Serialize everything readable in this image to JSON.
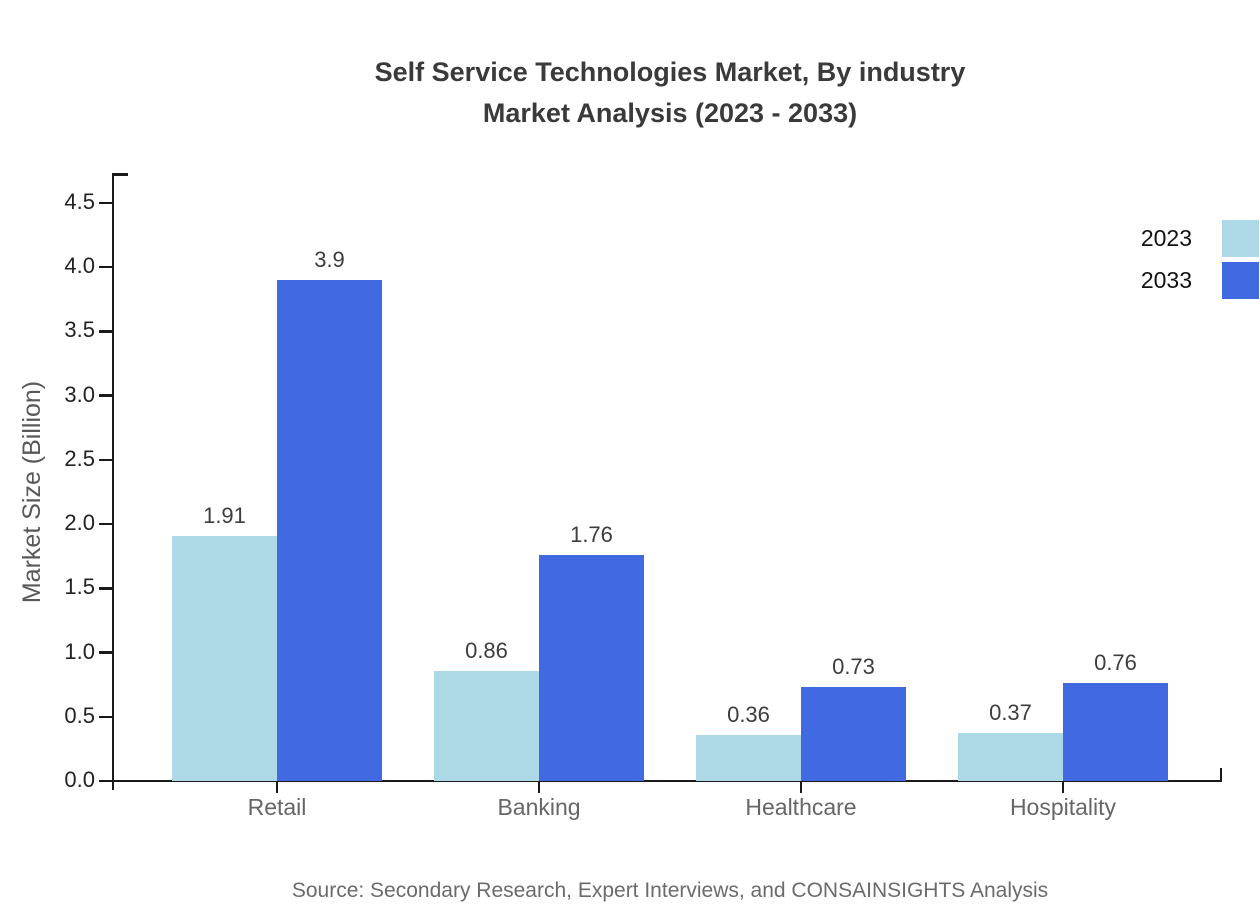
{
  "title": {
    "line1": "Self Service Technologies Market, By industry",
    "line2": "Market Analysis (2023 - 2033)"
  },
  "source_note": "Source: Secondary Research, Expert Interviews, and CONSAINSIGHTS Analysis",
  "chart_data": {
    "type": "bar",
    "title": "Self Service Technologies Market, By industry Market Analysis (2023 - 2033)",
    "categories": [
      "Retail",
      "Banking",
      "Healthcare",
      "Hospitality"
    ],
    "series": [
      {
        "name": "2023",
        "color": "#ADD8E6",
        "values": [
          1.91,
          0.86,
          0.36,
          0.37
        ]
      },
      {
        "name": "2033",
        "color": "#4169E1",
        "values": [
          3.9,
          1.76,
          0.73,
          0.76
        ]
      }
    ],
    "xlabel": "",
    "ylabel": "Market Size (Billion)",
    "ylim": [
      0,
      4.5
    ],
    "ytick_step": 0.5,
    "grid": false,
    "bar_value_labels": true,
    "legend_position": "top-right",
    "axis_color": "#1a1a1a"
  },
  "legend": {
    "items": [
      {
        "label": "2023",
        "color": "#ADD8E6"
      },
      {
        "label": "2033",
        "color": "#4169E1"
      }
    ]
  }
}
